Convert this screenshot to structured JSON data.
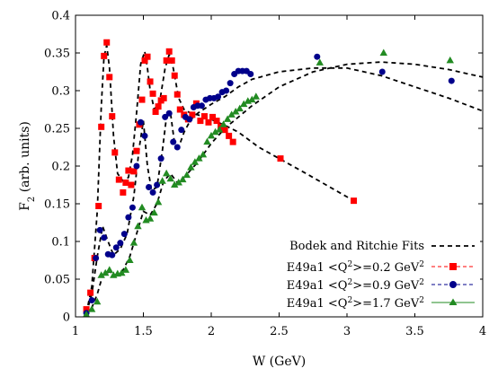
{
  "chart_data": {
    "type": "scatter",
    "xlabel": "W (GeV)",
    "ylabel": "F2 (arb. units)",
    "ylabel_main": "F",
    "ylabel_sub": "2",
    "ylabel_rest": " (arb. units)",
    "xlim": [
      1,
      4
    ],
    "ylim": [
      0,
      0.4
    ],
    "xticks": [
      1,
      1.5,
      2,
      2.5,
      3,
      3.5,
      4
    ],
    "xtick_labels": [
      "1",
      "1.5",
      "2",
      "2.5",
      "3",
      "3.5",
      "4"
    ],
    "yticks": [
      0,
      0.05,
      0.1,
      0.15,
      0.2,
      0.25,
      0.3,
      0.35,
      0.4
    ],
    "ytick_labels": [
      "0",
      "0.05",
      "0.1",
      "0.15",
      "0.2",
      "0.25",
      "0.3",
      "0.35",
      "0.4"
    ],
    "grid": false,
    "legend_position": "bottom-right",
    "fit_label": "Bodek and Ritchie Fits",
    "series": [
      {
        "name": "E49a1 <Q²>=0.2 GeV²",
        "label_pre": "E49a1 <Q",
        "label_sup1": "2",
        "label_mid": ">=0.2 GeV",
        "label_sup2": "2",
        "color": "#ff0000",
        "marker": "square",
        "x": [
          1.08,
          1.11,
          1.14,
          1.17,
          1.19,
          1.21,
          1.23,
          1.25,
          1.27,
          1.29,
          1.32,
          1.35,
          1.37,
          1.39,
          1.41,
          1.43,
          1.45,
          1.47,
          1.49,
          1.51,
          1.53,
          1.55,
          1.57,
          1.59,
          1.61,
          1.63,
          1.65,
          1.67,
          1.69,
          1.71,
          1.73,
          1.75,
          1.77,
          1.8,
          1.83,
          1.86,
          1.89,
          1.92,
          1.95,
          1.98,
          2.01,
          2.04,
          2.07,
          2.1,
          2.13,
          2.16,
          2.51,
          3.05
        ],
        "y": [
          0.01,
          0.032,
          0.078,
          0.147,
          0.252,
          0.346,
          0.364,
          0.318,
          0.266,
          0.218,
          0.182,
          0.165,
          0.178,
          0.194,
          0.175,
          0.193,
          0.22,
          0.255,
          0.288,
          0.34,
          0.345,
          0.312,
          0.296,
          0.272,
          0.279,
          0.287,
          0.29,
          0.34,
          0.352,
          0.34,
          0.32,
          0.295,
          0.275,
          0.268,
          0.262,
          0.268,
          0.283,
          0.26,
          0.266,
          0.258,
          0.265,
          0.26,
          0.252,
          0.248,
          0.24,
          0.232,
          0.21,
          0.154
        ]
      },
      {
        "name": "E49a1 <Q²>=0.9 GeV²",
        "label_pre": "E49a1 <Q",
        "label_sup1": "2",
        "label_mid": ">=0.9 GeV",
        "label_sup2": "2",
        "color": "#00008b",
        "marker": "circle",
        "x": [
          1.08,
          1.12,
          1.15,
          1.18,
          1.21,
          1.24,
          1.27,
          1.3,
          1.33,
          1.36,
          1.39,
          1.42,
          1.45,
          1.48,
          1.51,
          1.54,
          1.57,
          1.6,
          1.63,
          1.66,
          1.69,
          1.72,
          1.75,
          1.78,
          1.81,
          1.84,
          1.87,
          1.9,
          1.93,
          1.96,
          1.99,
          2.02,
          2.05,
          2.08,
          2.11,
          2.14,
          2.17,
          2.2,
          2.23,
          2.26,
          2.29,
          2.78,
          3.26,
          3.77
        ],
        "y": [
          0.005,
          0.022,
          0.078,
          0.115,
          0.105,
          0.083,
          0.082,
          0.092,
          0.098,
          0.11,
          0.132,
          0.145,
          0.2,
          0.258,
          0.24,
          0.172,
          0.165,
          0.175,
          0.21,
          0.265,
          0.27,
          0.232,
          0.225,
          0.248,
          0.265,
          0.262,
          0.278,
          0.28,
          0.28,
          0.288,
          0.29,
          0.29,
          0.292,
          0.298,
          0.3,
          0.31,
          0.322,
          0.326,
          0.326,
          0.326,
          0.322,
          0.345,
          0.325,
          0.313
        ]
      },
      {
        "name": "E49a1 <Q²>=1.7 GeV²",
        "label_pre": "E49a1 <Q",
        "label_sup1": "2",
        "label_mid": ">=1.7 GeV",
        "label_sup2": "2",
        "color": "#228b22",
        "marker": "triangle",
        "x": [
          1.08,
          1.12,
          1.16,
          1.19,
          1.22,
          1.25,
          1.28,
          1.31,
          1.34,
          1.37,
          1.4,
          1.43,
          1.46,
          1.49,
          1.52,
          1.55,
          1.58,
          1.61,
          1.64,
          1.67,
          1.7,
          1.73,
          1.76,
          1.79,
          1.82,
          1.85,
          1.88,
          1.91,
          1.94,
          1.97,
          2.0,
          2.03,
          2.06,
          2.09,
          2.12,
          2.15,
          2.18,
          2.21,
          2.24,
          2.27,
          2.3,
          2.33,
          2.8,
          3.27,
          3.76
        ],
        "y": [
          0.003,
          0.01,
          0.02,
          0.055,
          0.058,
          0.062,
          0.055,
          0.057,
          0.058,
          0.062,
          0.075,
          0.098,
          0.12,
          0.145,
          0.128,
          0.13,
          0.138,
          0.152,
          0.18,
          0.19,
          0.183,
          0.175,
          0.178,
          0.182,
          0.188,
          0.198,
          0.205,
          0.21,
          0.215,
          0.232,
          0.24,
          0.245,
          0.248,
          0.255,
          0.262,
          0.268,
          0.272,
          0.276,
          0.282,
          0.286,
          0.288,
          0.292,
          0.337,
          0.35,
          0.34
        ]
      }
    ],
    "fits": [
      {
        "x": [
          1.08,
          1.12,
          1.16,
          1.19,
          1.21,
          1.23,
          1.25,
          1.28,
          1.31,
          1.35,
          1.39,
          1.42,
          1.45,
          1.48,
          1.51,
          1.53,
          1.55,
          1.58,
          1.62,
          1.66,
          1.69,
          1.72,
          1.76,
          1.8,
          1.85,
          1.9,
          1.95,
          2.0,
          2.05,
          2.1,
          2.2,
          2.35,
          2.5,
          2.7,
          3.05
        ],
        "y": [
          0.005,
          0.04,
          0.14,
          0.28,
          0.345,
          0.36,
          0.33,
          0.24,
          0.19,
          0.18,
          0.185,
          0.215,
          0.27,
          0.335,
          0.352,
          0.33,
          0.3,
          0.275,
          0.285,
          0.33,
          0.348,
          0.33,
          0.29,
          0.275,
          0.27,
          0.268,
          0.265,
          0.262,
          0.258,
          0.254,
          0.245,
          0.225,
          0.21,
          0.19,
          0.154
        ]
      },
      {
        "x": [
          1.08,
          1.12,
          1.16,
          1.2,
          1.24,
          1.28,
          1.33,
          1.38,
          1.43,
          1.47,
          1.5,
          1.53,
          1.56,
          1.6,
          1.64,
          1.67,
          1.7,
          1.73,
          1.76,
          1.8,
          1.85,
          1.9,
          2.0,
          2.1,
          2.2,
          2.3,
          2.5,
          2.75,
          3.0,
          3.25,
          3.5,
          3.75,
          4.0
        ],
        "y": [
          0.005,
          0.03,
          0.08,
          0.12,
          0.1,
          0.082,
          0.09,
          0.11,
          0.16,
          0.225,
          0.26,
          0.2,
          0.168,
          0.172,
          0.22,
          0.265,
          0.27,
          0.23,
          0.225,
          0.245,
          0.262,
          0.27,
          0.282,
          0.292,
          0.305,
          0.315,
          0.325,
          0.33,
          0.33,
          0.32,
          0.305,
          0.29,
          0.273
        ]
      },
      {
        "x": [
          1.08,
          1.12,
          1.16,
          1.2,
          1.25,
          1.3,
          1.35,
          1.4,
          1.45,
          1.5,
          1.55,
          1.6,
          1.65,
          1.7,
          1.75,
          1.8,
          1.9,
          2.0,
          2.1,
          2.2,
          2.3,
          2.5,
          2.75,
          3.0,
          3.25,
          3.5,
          3.75,
          4.0
        ],
        "y": [
          0.003,
          0.012,
          0.03,
          0.055,
          0.06,
          0.055,
          0.062,
          0.08,
          0.11,
          0.14,
          0.135,
          0.15,
          0.18,
          0.19,
          0.178,
          0.185,
          0.205,
          0.23,
          0.25,
          0.265,
          0.28,
          0.305,
          0.325,
          0.335,
          0.338,
          0.335,
          0.328,
          0.318
        ]
      }
    ]
  }
}
